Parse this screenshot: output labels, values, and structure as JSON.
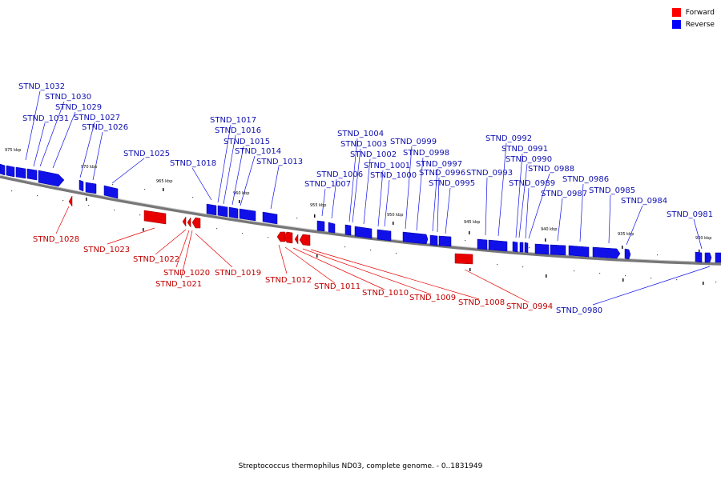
{
  "legend": {
    "forward": {
      "label": "Forward",
      "color": "#ff0000"
    },
    "reverse": {
      "label": "Reverse",
      "color": "#0000ff"
    }
  },
  "footer": "Streptococcus thermophilus ND03, complete genome. - 0..1831949",
  "ticks": [
    "975 kbp",
    "970 kbp",
    "965 kbp",
    "960 kbp",
    "955 kbp",
    "950 kbp",
    "945 kbp",
    "940 kbp",
    "935 kbp",
    "930 kbp"
  ],
  "genes": {
    "reverse": [
      "STND_1032",
      "STND_1030",
      "STND_1031",
      "STND_1029",
      "STND_1027",
      "STND_1026",
      "STND_1025",
      "STND_1018",
      "STND_1017",
      "STND_1016",
      "STND_1015",
      "STND_1014",
      "STND_1013",
      "STND_1004",
      "STND_1003",
      "STND_1002",
      "STND_1001",
      "STND_1006",
      "STND_1000",
      "STND_1007",
      "STND_0999",
      "STND_0998",
      "STND_0997",
      "STND_0996",
      "STND_0995",
      "STND_0993",
      "STND_0992",
      "STND_0991",
      "STND_0990",
      "STND_0988",
      "STND_0989",
      "STND_0987",
      "STND_0986",
      "STND_0985",
      "STND_0984",
      "STND_0981",
      "STND_0980"
    ],
    "forward": [
      "STND_1028",
      "STND_1023",
      "STND_1022",
      "STND_1020",
      "STND_1021",
      "STND_1019",
      "STND_1012",
      "STND_1011",
      "STND_1010",
      "STND_1009",
      "STND_1008",
      "STND_0994"
    ]
  }
}
